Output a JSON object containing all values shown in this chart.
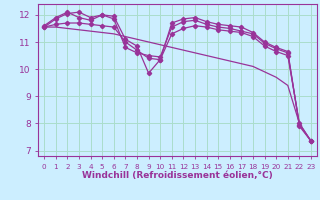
{
  "bg_color": "#cceeff",
  "line_color": "#993399",
  "grid_color": "#aaddcc",
  "xlabel": "Windchill (Refroidissement éolien,°C)",
  "xlabel_fontsize": 6.5,
  "xticks": [
    0,
    1,
    2,
    3,
    4,
    5,
    6,
    7,
    8,
    9,
    10,
    11,
    12,
    13,
    14,
    15,
    16,
    17,
    18,
    19,
    20,
    21,
    22,
    23
  ],
  "yticks": [
    7,
    8,
    9,
    10,
    11,
    12
  ],
  "xlim": [
    -0.5,
    23.5
  ],
  "ylim": [
    6.8,
    12.4
  ],
  "lines": [
    [
      11.6,
      11.9,
      12.1,
      11.9,
      11.8,
      12.0,
      11.95,
      11.1,
      10.85,
      9.85,
      10.35,
      11.7,
      11.85,
      11.9,
      11.75,
      11.65,
      11.6,
      11.55,
      11.35,
      11.0,
      10.8,
      10.65,
      7.9,
      7.35
    ],
    [
      11.55,
      11.85,
      12.05,
      12.1,
      11.9,
      12.0,
      11.85,
      10.8,
      10.6,
      10.5,
      10.45,
      11.55,
      11.75,
      11.8,
      11.65,
      11.55,
      11.5,
      11.4,
      11.3,
      10.95,
      10.75,
      10.6,
      7.95,
      7.35
    ],
    [
      11.55,
      11.65,
      11.7,
      11.7,
      11.65,
      11.6,
      11.55,
      11.0,
      10.7,
      10.4,
      10.35,
      11.3,
      11.5,
      11.6,
      11.55,
      11.45,
      11.4,
      11.35,
      11.2,
      10.85,
      10.65,
      10.5,
      8.0,
      7.35
    ],
    [
      11.55,
      11.55,
      11.5,
      11.45,
      11.4,
      11.35,
      11.3,
      11.2,
      11.1,
      11.0,
      10.9,
      10.8,
      10.7,
      10.6,
      10.5,
      10.4,
      10.3,
      10.2,
      10.1,
      9.9,
      9.7,
      9.4,
      8.0,
      7.35
    ]
  ]
}
